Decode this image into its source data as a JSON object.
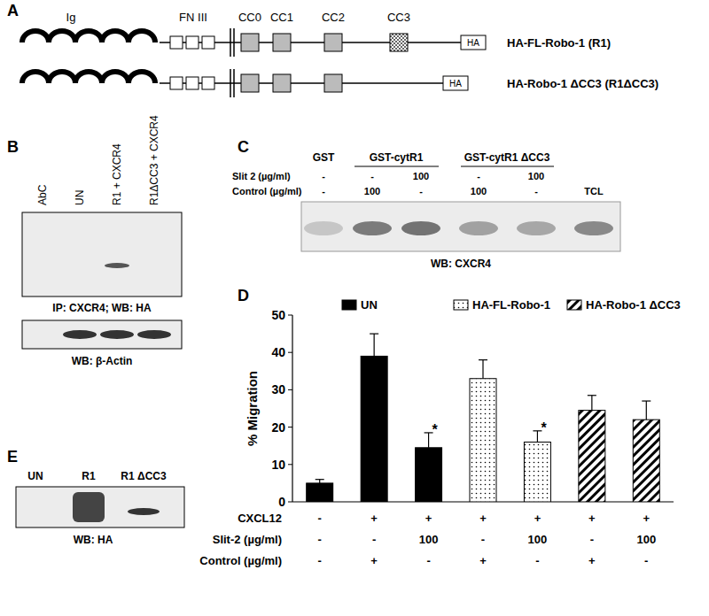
{
  "panel_labels": [
    "A",
    "B",
    "C",
    "D",
    "E"
  ],
  "panel_a": {
    "domains": [
      "Ig",
      "FN III",
      "CC0",
      "CC1",
      "CC2",
      "CC3"
    ],
    "constructs": [
      {
        "label": "HA-FL-Robo-1 (R1)",
        "tag": "HA"
      },
      {
        "label": "HA-Robo-1 ΔCC3 (R1ΔCC3)",
        "tag": "HA"
      }
    ]
  },
  "panel_b": {
    "lanes": [
      "AbC",
      "UN",
      "R1 + CXCR4",
      "R1ΔCC3 + CXCR4"
    ],
    "blots": [
      {
        "caption": "IP: CXCR4;  WB: HA"
      },
      {
        "caption": "WB: β-Actin"
      }
    ]
  },
  "panel_c": {
    "groups": [
      "GST",
      "GST-cytR1",
      "GST-cytR1 ΔCC3"
    ],
    "rows": [
      {
        "label": "Slit 2 (µg/ml)",
        "values": [
          "-",
          "-",
          "100",
          "-",
          "100"
        ]
      },
      {
        "label": "Control (µg/ml)",
        "values": [
          "-",
          "100",
          "-",
          "100",
          "-"
        ]
      }
    ],
    "extra_lane": "TCL",
    "caption": "WB: CXCR4"
  },
  "chart_data": {
    "type": "bar",
    "categories": [
      null,
      null,
      null,
      null,
      null,
      null,
      null
    ],
    "y_label": "% Migration",
    "ylim": [
      0,
      50
    ],
    "yticks": [
      0,
      10,
      20,
      30,
      40,
      50
    ],
    "legend": "top",
    "series": [
      {
        "name": "UN",
        "color": "#000000",
        "values": [
          5,
          39,
          14.5,
          null,
          null,
          null,
          null
        ],
        "errors": [
          1,
          6,
          4,
          null,
          null,
          null,
          null
        ]
      },
      {
        "name": "HA-FL-Robo-1",
        "color": "#ffffff",
        "values": [
          null,
          null,
          null,
          33,
          16,
          null,
          null
        ],
        "errors": [
          null,
          null,
          null,
          5,
          3,
          null,
          null
        ]
      },
      {
        "name": "HA-Robo-1 ΔCC3",
        "color": "#ffffff",
        "values": [
          null,
          null,
          null,
          null,
          null,
          24.5,
          22
        ],
        "errors": [
          null,
          null,
          null,
          null,
          null,
          4,
          5
        ]
      }
    ],
    "annotations": [
      {
        "text": "*",
        "category": 2
      },
      {
        "text": "*",
        "category": 4
      }
    ],
    "conditions": [
      {
        "label": "CXCL12",
        "values": [
          "-",
          "+",
          "+",
          "+",
          "+",
          "+",
          "+"
        ]
      },
      {
        "label": "Slit-2 (µg/ml)",
        "values": [
          "-",
          "-",
          "100",
          "-",
          "100",
          "-",
          "100"
        ]
      },
      {
        "label": "Control (µg/ml)",
        "values": [
          "-",
          "+",
          "-",
          "+",
          "-",
          "+",
          "-"
        ]
      }
    ]
  },
  "panel_e": {
    "lanes": [
      "UN",
      "R1",
      "R1 ΔCC3"
    ],
    "caption": "WB: HA"
  }
}
